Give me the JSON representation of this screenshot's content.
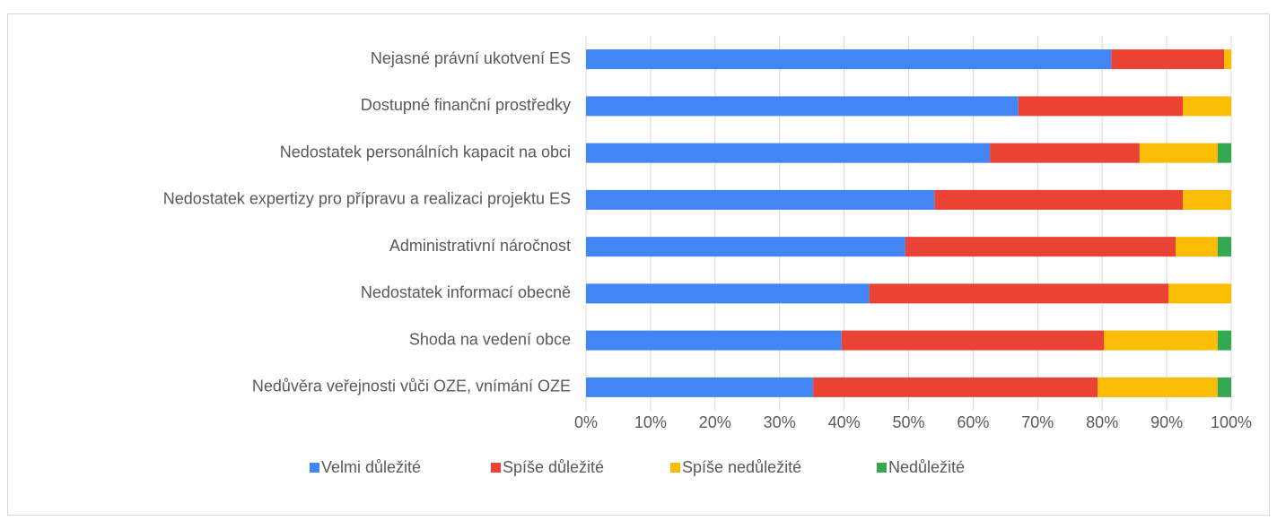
{
  "chart_data": {
    "type": "stacked_bar_horizontal",
    "categories": [
      "Nejasné právní ukotvení ES",
      "Dostupné finanční prostředky",
      "Nedostatek personálních kapacit na obci",
      "Nedostatek expertizy pro přípravu a realizaci projektu ES",
      "Administrativní náročnost",
      "Nedostatek informací obecně",
      "Shoda na vedení obce",
      "Nedůvěra veřejnosti vůči OZE, vnímání OZE"
    ],
    "series": [
      {
        "name": "Velmi důležité",
        "color": "#4285f4",
        "values": [
          81.4,
          67.0,
          62.6,
          54.0,
          49.5,
          43.9,
          39.6,
          35.2
        ]
      },
      {
        "name": "Spíše důležité",
        "color": "#ea4335",
        "values": [
          17.5,
          25.5,
          23.2,
          38.5,
          41.9,
          46.4,
          40.7,
          44.1
        ]
      },
      {
        "name": "Spíše nedůležité",
        "color": "#fbbc04",
        "values": [
          1.1,
          7.5,
          12.1,
          7.5,
          6.5,
          9.7,
          17.6,
          18.6
        ]
      },
      {
        "name": "Nedůležité",
        "color": "#34a853",
        "values": [
          0,
          0,
          2.1,
          0,
          2.1,
          0,
          2.1,
          2.1
        ]
      }
    ],
    "xlim": [
      0,
      100
    ],
    "xticks": [
      {
        "value": 0,
        "label": "0%"
      },
      {
        "value": 10,
        "label": "10%"
      },
      {
        "value": 20,
        "label": "20%"
      },
      {
        "value": 30,
        "label": "30%"
      },
      {
        "value": 40,
        "label": "40%"
      },
      {
        "value": 50,
        "label": "50%"
      },
      {
        "value": 60,
        "label": "60%"
      },
      {
        "value": 70,
        "label": "70%"
      },
      {
        "value": 80,
        "label": "80%"
      },
      {
        "value": 90,
        "label": "90%"
      },
      {
        "value": 100,
        "label": "100%"
      }
    ],
    "grid": true,
    "legend": "bottom"
  }
}
